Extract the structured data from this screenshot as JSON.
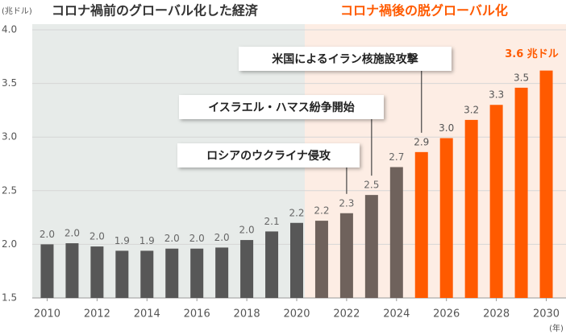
{
  "chart_data": {
    "type": "bar",
    "unit_label": "(兆ドル)",
    "x_unit_label": "(年)",
    "region_titles": [
      "コロナ禍前のグローバル化した経済",
      "コロナ禍後の脱グローバル化"
    ],
    "annotations": [
      {
        "text": "米国によるイラン核施設攻撃",
        "category_index": 15
      },
      {
        "text": "イスラエル・ハマス紛争開始",
        "category_index": 13
      },
      {
        "text": "ロシアのウクライナ侵攻",
        "category_index": 12
      }
    ],
    "categories": [
      "2010",
      null,
      "2012",
      null,
      "2014",
      null,
      "2016",
      null,
      "2018",
      null,
      "2020",
      null,
      "2022",
      null,
      "2024",
      null,
      "2026",
      null,
      "2028",
      null,
      "2030"
    ],
    "values": [
      2.0,
      2.01,
      1.98,
      1.94,
      1.94,
      1.96,
      1.96,
      1.97,
      2.04,
      2.12,
      2.2,
      2.22,
      2.29,
      2.46,
      2.72,
      2.86,
      2.99,
      3.16,
      3.3,
      3.46,
      3.62
    ],
    "value_labels": [
      "2.0",
      "2.0",
      "2.0",
      "1.9",
      "1.9",
      "2.0",
      "2.0",
      "2.0",
      "2.0",
      "2.1",
      "2.2",
      "2.2",
      "2.3",
      "2.5",
      "2.7",
      "2.9",
      "3.0",
      "3.2",
      "3.3",
      "3.5",
      "3.6 兆ドル"
    ],
    "colors": [
      "#575757",
      "#575757",
      "#575757",
      "#575757",
      "#575757",
      "#575757",
      "#575757",
      "#575757",
      "#575757",
      "#575757",
      "#575757",
      "#6f625c",
      "#6f625c",
      "#6f625c",
      "#6f625c",
      "#ff5a00",
      "#ff5a00",
      "#ff5a00",
      "#ff5a00",
      "#ff5a00",
      "#ff5a00"
    ],
    "ylim": [
      1.5,
      4.0
    ],
    "yticks": [
      1.5,
      {
        "value": 2.0,
        "label": "2.0"
      },
      2.5,
      {
        "value": 3.0,
        "label": "3.0"
      },
      3.5,
      {
        "value": 4.0,
        "label": "4.0"
      }
    ],
    "grid": true
  }
}
